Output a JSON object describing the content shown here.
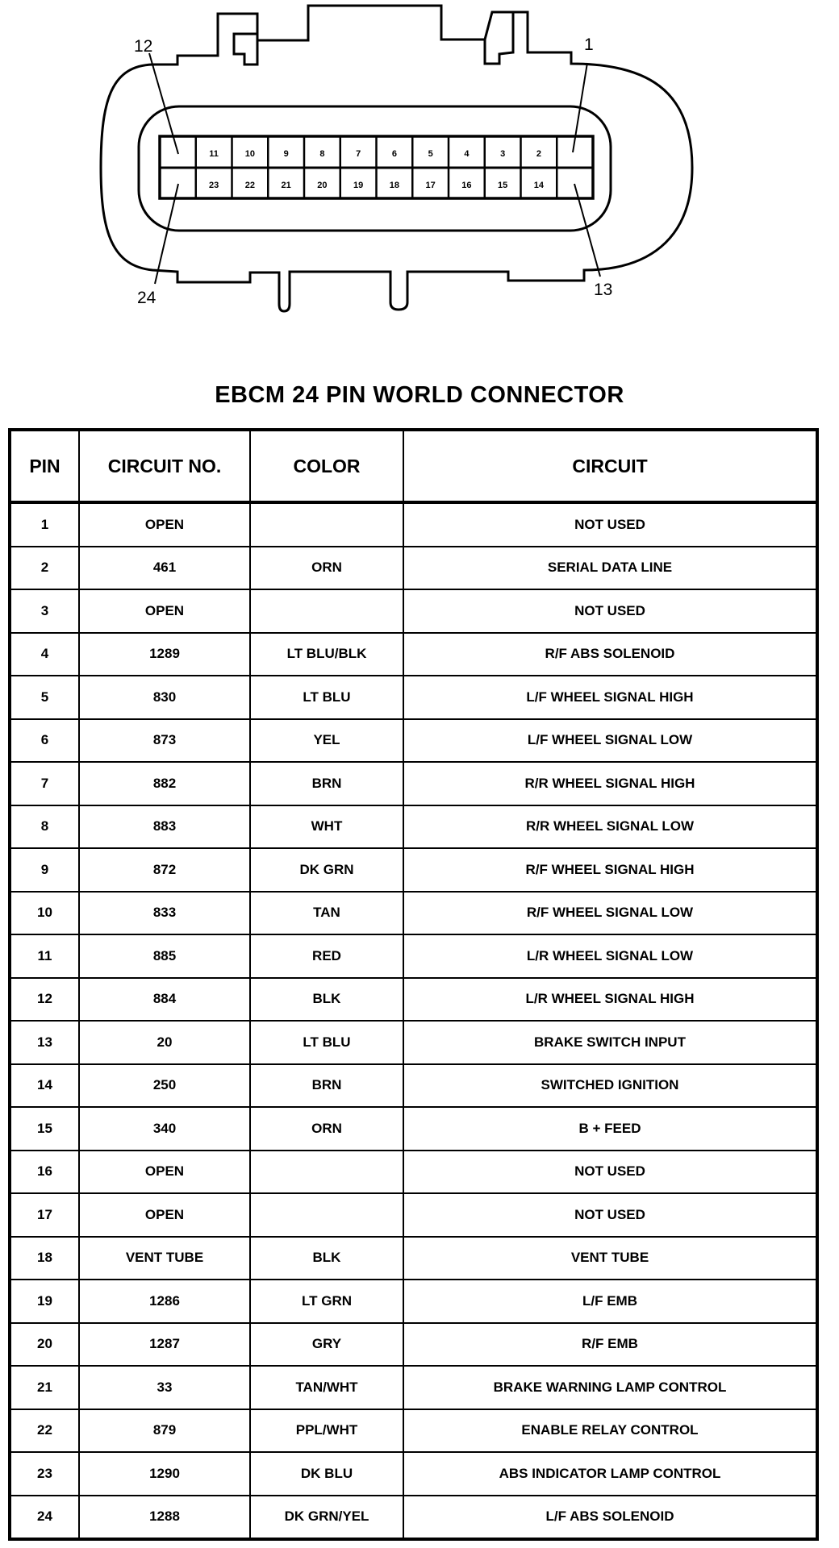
{
  "connector": {
    "pin_labels_top": [
      "11",
      "10",
      "9",
      "8",
      "7",
      "6",
      "5",
      "4",
      "3",
      "2"
    ],
    "pin_labels_bottom": [
      "23",
      "22",
      "21",
      "20",
      "19",
      "18",
      "17",
      "16",
      "15",
      "14"
    ],
    "callouts": {
      "top_left": "12",
      "top_right": "1",
      "bottom_left": "24",
      "bottom_right": "13"
    }
  },
  "title": "EBCM 24 PIN WORLD CONNECTOR",
  "table": {
    "headers": [
      "PIN",
      "CIRCUIT NO.",
      "COLOR",
      "CIRCUIT"
    ],
    "rows": [
      [
        "1",
        "OPEN",
        "",
        "NOT USED"
      ],
      [
        "2",
        "461",
        "ORN",
        "SERIAL DATA LINE"
      ],
      [
        "3",
        "OPEN",
        "",
        "NOT USED"
      ],
      [
        "4",
        "1289",
        "LT BLU/BLK",
        "R/F ABS SOLENOID"
      ],
      [
        "5",
        "830",
        "LT BLU",
        "L/F WHEEL SIGNAL HIGH"
      ],
      [
        "6",
        "873",
        "YEL",
        "L/F WHEEL SIGNAL LOW"
      ],
      [
        "7",
        "882",
        "BRN",
        "R/R WHEEL SIGNAL HIGH"
      ],
      [
        "8",
        "883",
        "WHT",
        "R/R WHEEL SIGNAL LOW"
      ],
      [
        "9",
        "872",
        "DK GRN",
        "R/F WHEEL SIGNAL HIGH"
      ],
      [
        "10",
        "833",
        "TAN",
        "R/F WHEEL SIGNAL LOW"
      ],
      [
        "11",
        "885",
        "RED",
        "L/R WHEEL SIGNAL LOW"
      ],
      [
        "12",
        "884",
        "BLK",
        "L/R WHEEL SIGNAL HIGH"
      ],
      [
        "13",
        "20",
        "LT BLU",
        "BRAKE SWITCH INPUT"
      ],
      [
        "14",
        "250",
        "BRN",
        "SWITCHED IGNITION"
      ],
      [
        "15",
        "340",
        "ORN",
        "B + FEED"
      ],
      [
        "16",
        "OPEN",
        "",
        "NOT USED"
      ],
      [
        "17",
        "OPEN",
        "",
        "NOT USED"
      ],
      [
        "18",
        "VENT TUBE",
        "BLK",
        "VENT TUBE"
      ],
      [
        "19",
        "1286",
        "LT GRN",
        "L/F EMB"
      ],
      [
        "20",
        "1287",
        "GRY",
        "R/F EMB"
      ],
      [
        "21",
        "33",
        "TAN/WHT",
        "BRAKE WARNING LAMP CONTROL"
      ],
      [
        "22",
        "879",
        "PPL/WHT",
        "ENABLE RELAY CONTROL"
      ],
      [
        "23",
        "1290",
        "DK BLU",
        "ABS INDICATOR LAMP CONTROL"
      ],
      [
        "24",
        "1288",
        "DK GRN/YEL",
        "L/F ABS SOLENOID"
      ]
    ]
  }
}
